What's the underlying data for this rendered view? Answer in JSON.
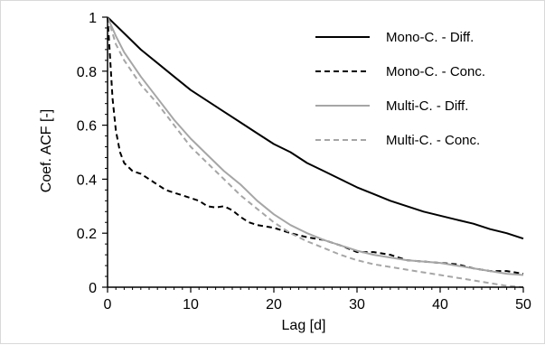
{
  "chart_data": {
    "type": "line",
    "xlabel": "Lag [d]",
    "ylabel": "Coef. ACF [-]",
    "xlim": [
      0,
      50
    ],
    "ylim": [
      0,
      1
    ],
    "x_ticks": [
      0,
      10,
      20,
      30,
      40,
      50
    ],
    "y_ticks": [
      0,
      0.2,
      0.4,
      0.6,
      0.8,
      1
    ],
    "x_tick_labels": [
      "0",
      "10",
      "20",
      "30",
      "40",
      "50"
    ],
    "y_tick_labels": [
      "0",
      "0.2",
      "0.4",
      "0.6",
      "0.8",
      "1"
    ],
    "grid": false,
    "legend_position": "top-right",
    "series": [
      {
        "name": "Mono-C. - Diff.",
        "color": "#000000",
        "dash": "solid",
        "x": [
          0,
          2,
          4,
          6,
          8,
          10,
          12,
          14,
          16,
          18,
          20,
          22,
          24,
          26,
          28,
          30,
          32,
          34,
          36,
          38,
          40,
          42,
          44,
          46,
          48,
          50
        ],
        "y": [
          1.0,
          0.94,
          0.88,
          0.83,
          0.78,
          0.73,
          0.69,
          0.65,
          0.61,
          0.57,
          0.53,
          0.5,
          0.46,
          0.43,
          0.4,
          0.37,
          0.345,
          0.32,
          0.3,
          0.28,
          0.265,
          0.25,
          0.235,
          0.215,
          0.2,
          0.18
        ]
      },
      {
        "name": "Mono-C. - Conc.",
        "color": "#000000",
        "dash": "dashed",
        "x": [
          0,
          0.3,
          0.6,
          1,
          1.5,
          2,
          3,
          4,
          5,
          6,
          7,
          8,
          9,
          10,
          11,
          12,
          13,
          14,
          15,
          16,
          17,
          18,
          20,
          22,
          24,
          26,
          28,
          30,
          32,
          34,
          36,
          38,
          40,
          42,
          44,
          46,
          48,
          50
        ],
        "y": [
          1.0,
          0.85,
          0.7,
          0.58,
          0.5,
          0.46,
          0.43,
          0.42,
          0.4,
          0.38,
          0.36,
          0.35,
          0.34,
          0.33,
          0.32,
          0.3,
          0.295,
          0.3,
          0.285,
          0.26,
          0.24,
          0.23,
          0.22,
          0.2,
          0.185,
          0.175,
          0.155,
          0.13,
          0.13,
          0.12,
          0.1,
          0.095,
          0.09,
          0.085,
          0.07,
          0.06,
          0.06,
          0.05
        ]
      },
      {
        "name": "Multi-C. - Diff.",
        "color": "#a6a6a6",
        "dash": "solid",
        "x": [
          0,
          1,
          2,
          4,
          6,
          8,
          10,
          12,
          14,
          16,
          18,
          20,
          22,
          24,
          26,
          28,
          30,
          32,
          34,
          36,
          38,
          40,
          42,
          44,
          46,
          48,
          50
        ],
        "y": [
          1.0,
          0.93,
          0.87,
          0.78,
          0.7,
          0.62,
          0.55,
          0.49,
          0.43,
          0.38,
          0.32,
          0.27,
          0.23,
          0.2,
          0.175,
          0.155,
          0.135,
          0.12,
          0.11,
          0.1,
          0.095,
          0.09,
          0.08,
          0.07,
          0.06,
          0.05,
          0.045
        ]
      },
      {
        "name": "Multi-C. - Conc.",
        "color": "#a6a6a6",
        "dash": "dashed",
        "x": [
          0,
          1,
          2,
          4,
          6,
          8,
          10,
          12,
          14,
          16,
          18,
          20,
          22,
          24,
          26,
          28,
          30,
          32,
          34,
          36,
          38,
          40,
          42,
          44,
          46,
          48,
          50
        ],
        "y": [
          1.0,
          0.9,
          0.84,
          0.75,
          0.68,
          0.6,
          0.52,
          0.46,
          0.4,
          0.34,
          0.29,
          0.24,
          0.2,
          0.17,
          0.145,
          0.12,
          0.1,
          0.085,
          0.075,
          0.065,
          0.055,
          0.045,
          0.035,
          0.025,
          0.015,
          0.005,
          0.0
        ]
      }
    ]
  }
}
